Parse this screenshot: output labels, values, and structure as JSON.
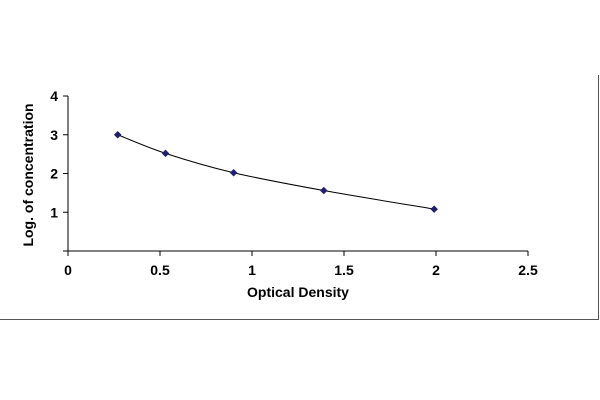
{
  "chart_data": {
    "type": "scatter",
    "title": "",
    "xlabel": "Optical Density",
    "ylabel": "Log. of concentration",
    "xlim": [
      0,
      2.5
    ],
    "ylim": [
      0,
      4
    ],
    "x_ticks": [
      0,
      0.5,
      1,
      1.5,
      2,
      2.5
    ],
    "x_tick_labels": [
      "0",
      "0.5",
      "1",
      "1.5",
      "2",
      "2.5"
    ],
    "y_ticks": [
      0,
      1,
      2,
      3,
      4
    ],
    "y_tick_labels": [
      "",
      "1",
      "2",
      "3",
      "4"
    ],
    "grid": false,
    "legend": "none",
    "trendline": "smooth curve",
    "series": [
      {
        "x": [
          0.27,
          0.53,
          0.9,
          1.39,
          1.99
        ],
        "y": [
          3.0,
          2.52,
          2.02,
          1.56,
          1.08
        ],
        "color": "#1f1f6e",
        "line_color": "#000000",
        "marker": "diamond"
      }
    ]
  }
}
